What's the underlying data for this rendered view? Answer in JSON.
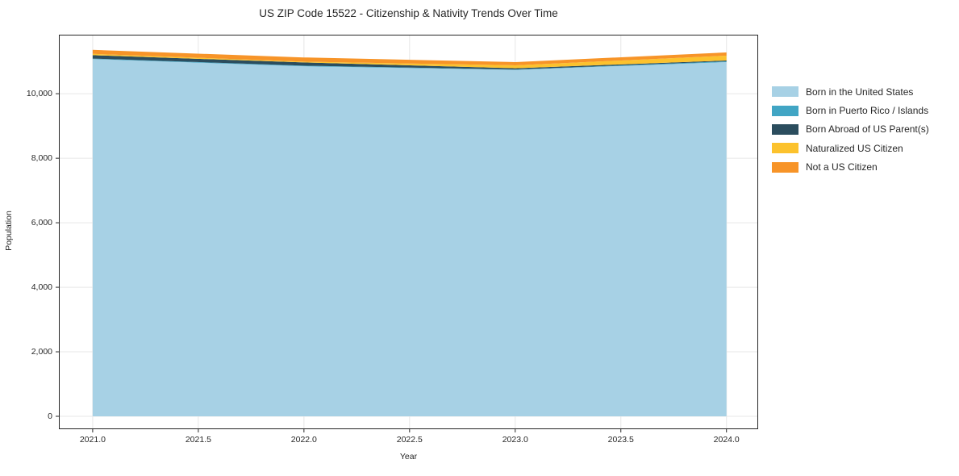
{
  "chart_data": {
    "type": "area",
    "stacked": true,
    "title": "US ZIP Code 15522 - Citizenship & Nativity Trends Over Time",
    "xlabel": "Year",
    "ylabel": "Population",
    "x": [
      2021,
      2022,
      2023,
      2024
    ],
    "series": [
      {
        "name": "Born in the United States",
        "color": "#a7d1e5",
        "values": [
          11075,
          10850,
          10740,
          10980
        ]
      },
      {
        "name": "Born in Puerto Rico / Islands",
        "color": "#41a5c4",
        "values": [
          15,
          20,
          10,
          25
        ]
      },
      {
        "name": "Born Abroad of US Parent(s)",
        "color": "#2b4d5e",
        "values": [
          105,
          100,
          40,
          25
        ]
      },
      {
        "name": "Naturalized US Citizen",
        "color": "#fcc22d",
        "values": [
          40,
          25,
          90,
          150
        ]
      },
      {
        "name": "Not a US Citizen",
        "color": "#f79428",
        "values": [
          125,
          130,
          100,
          100
        ]
      }
    ],
    "xticks": {
      "values": [
        2021.0,
        2021.5,
        2022.0,
        2022.5,
        2023.0,
        2023.5,
        2024.0
      ],
      "labels": [
        "2021.0",
        "2021.5",
        "2022.0",
        "2022.5",
        "2023.0",
        "2023.5",
        "2024.0"
      ]
    },
    "yticks": {
      "values": [
        0,
        2000,
        4000,
        6000,
        8000,
        10000
      ],
      "labels": [
        "0",
        "2,000",
        "4,000",
        "6,000",
        "8,000",
        "10,000"
      ]
    },
    "xlim": [
      2020.84,
      2024.15
    ],
    "ylim": [
      -400,
      11830
    ],
    "grid": true,
    "legend_position": "right-outside",
    "background": "#ffffff",
    "axis_color": "#262626",
    "grid_color": "#e7e7e7"
  }
}
